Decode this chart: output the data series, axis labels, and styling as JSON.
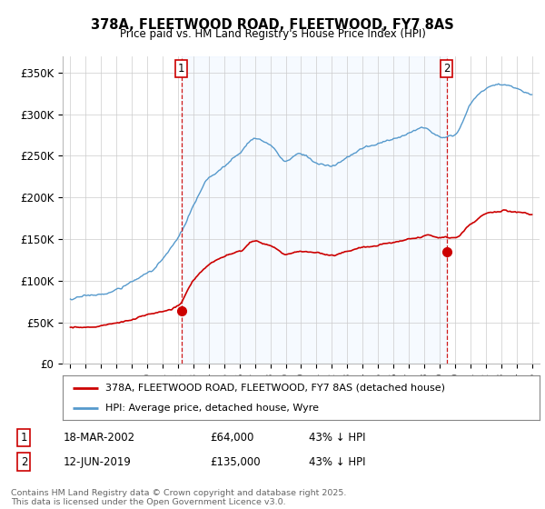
{
  "title": "378A, FLEETWOOD ROAD, FLEETWOOD, FY7 8AS",
  "subtitle": "Price paid vs. HM Land Registry's House Price Index (HPI)",
  "ylabel_ticks": [
    "£0",
    "£50K",
    "£100K",
    "£150K",
    "£200K",
    "£250K",
    "£300K",
    "£350K"
  ],
  "ytick_values": [
    0,
    50000,
    100000,
    150000,
    200000,
    250000,
    300000,
    350000
  ],
  "ylim": [
    0,
    370000
  ],
  "xlim_start": 1994.5,
  "xlim_end": 2025.5,
  "sale1_x": 2002.21,
  "sale1_y": 64000,
  "sale2_x": 2019.45,
  "sale2_y": 135000,
  "line1_color": "#cc0000",
  "line2_color": "#5599cc",
  "shade_color": "#ddeeff",
  "vline_color": "#cc0000",
  "legend1_label": "378A, FLEETWOOD ROAD, FLEETWOOD, FY7 8AS (detached house)",
  "legend2_label": "HPI: Average price, detached house, Wyre",
  "footer": "Contains HM Land Registry data © Crown copyright and database right 2025.\nThis data is licensed under the Open Government Licence v3.0.",
  "background_color": "#ffffff",
  "grid_color": "#cccccc"
}
